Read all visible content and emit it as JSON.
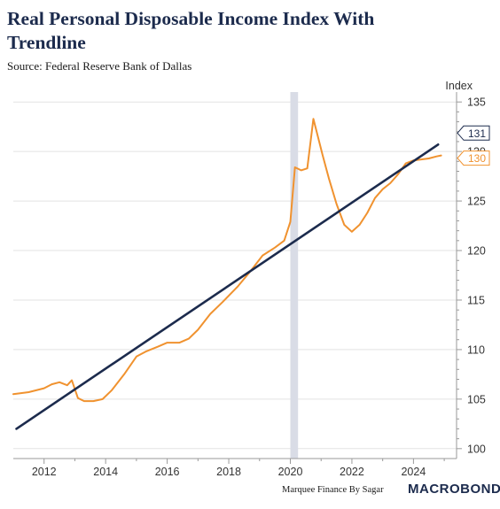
{
  "title": "Real Personal Disposable Income Index With Trendline",
  "source": "Source: Federal Reserve Bank of Dallas",
  "credit": "Marquee Finance By Sagar",
  "brand": "MACROBOND",
  "colors": {
    "series": "#f0922f",
    "trend": "#1c2b4d",
    "recession": "#d9dce6",
    "grid": "#e3e3e3"
  },
  "chart_data": {
    "type": "line",
    "ylabel": "Index",
    "xlim": [
      2011.0,
      2025.4
    ],
    "ylim": [
      99,
      136
    ],
    "x_ticks": [
      2012,
      2014,
      2016,
      2018,
      2020,
      2022,
      2024
    ],
    "x_tick_labels": [
      "2012",
      "2014",
      "2016",
      "2018",
      "2020",
      "2022",
      "2024"
    ],
    "y_ticks": [
      100,
      105,
      110,
      115,
      120,
      125,
      130,
      135
    ],
    "y_tick_labels": [
      "100",
      "105",
      "110",
      "115",
      "120",
      "125",
      "130",
      "135"
    ],
    "grid": "horizontal",
    "recession_band": [
      2020.0,
      2020.25
    ],
    "series": [
      {
        "role": "data",
        "end_label": "130",
        "x": [
          2011.0,
          2011.5,
          2012.0,
          2012.25,
          2012.5,
          2012.75,
          2012.9,
          2013.1,
          2013.3,
          2013.6,
          2013.9,
          2014.2,
          2014.6,
          2015.0,
          2015.3,
          2015.7,
          2016.0,
          2016.4,
          2016.7,
          2017.0,
          2017.4,
          2017.8,
          2018.3,
          2018.7,
          2019.1,
          2019.5,
          2019.8,
          2020.0,
          2020.15,
          2020.35,
          2020.55,
          2020.75,
          2021.05,
          2021.25,
          2021.5,
          2021.75,
          2022.0,
          2022.25,
          2022.5,
          2022.75,
          2023.0,
          2023.25,
          2023.5,
          2023.75,
          2024.0,
          2024.25,
          2024.5,
          2024.75,
          2024.9
        ],
        "y": [
          105.5,
          105.7,
          106.1,
          106.5,
          106.7,
          106.4,
          106.9,
          105.1,
          104.8,
          104.8,
          105.0,
          105.9,
          107.5,
          109.3,
          109.8,
          110.3,
          110.7,
          110.7,
          111.1,
          112.0,
          113.6,
          114.8,
          116.4,
          117.9,
          119.5,
          120.3,
          121.0,
          122.9,
          128.4,
          128.1,
          128.3,
          133.3,
          129.6,
          127.3,
          124.7,
          122.6,
          121.9,
          122.6,
          123.8,
          125.3,
          126.2,
          126.8,
          127.7,
          128.8,
          129.1,
          129.2,
          129.3,
          129.5,
          129.6
        ]
      },
      {
        "role": "trendline",
        "end_label": "131",
        "x": [
          2011.1,
          2024.8
        ],
        "y": [
          102.0,
          130.7
        ]
      }
    ]
  }
}
